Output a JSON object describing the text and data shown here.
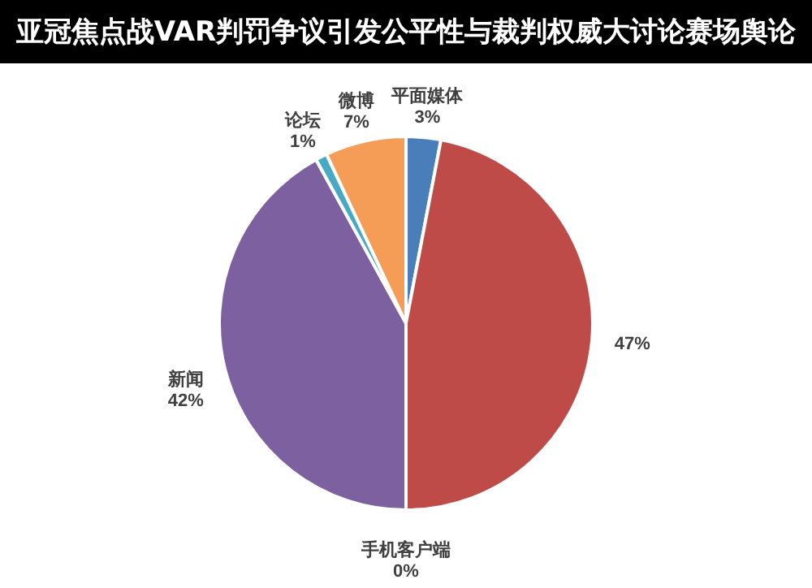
{
  "chart_data": {
    "type": "pie",
    "title": "亚冠焦点战VAR判罚争议引发公平性与裁判权威大讨论赛场舆论",
    "categories": [
      "平面媒体",
      null,
      "手机客户端",
      "新闻",
      "论坛",
      "微博"
    ],
    "values": [
      3,
      47,
      0,
      42,
      1,
      7
    ],
    "colors": [
      "#4a7ebb",
      "#be4b48",
      "#98b954",
      "#7d60a0",
      "#46aac5",
      "#f59d56"
    ],
    "value_labels": [
      "3%",
      "47%",
      "0%",
      "42%",
      "1%",
      "7%"
    ]
  }
}
